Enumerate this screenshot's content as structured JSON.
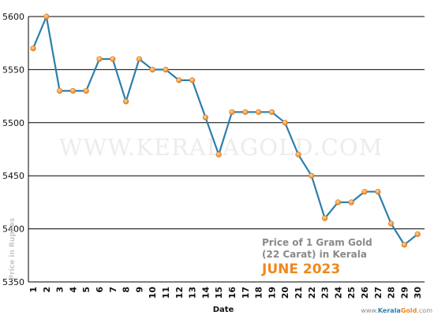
{
  "chart_data": {
    "type": "line",
    "x": [
      1,
      2,
      3,
      4,
      5,
      6,
      7,
      8,
      9,
      10,
      11,
      12,
      13,
      14,
      15,
      16,
      17,
      18,
      19,
      20,
      21,
      22,
      23,
      24,
      25,
      26,
      27,
      28,
      29,
      30
    ],
    "values": [
      5570,
      5600,
      5530,
      5530,
      5530,
      5560,
      5560,
      5520,
      5560,
      5550,
      5550,
      5540,
      5540,
      5505,
      5470,
      5510,
      5510,
      5510,
      5510,
      5500,
      5470,
      5450,
      5410,
      5425,
      5425,
      5435,
      5435,
      5405,
      5385,
      5395
    ],
    "xlabel": "Date",
    "ylabel": "Price in Rupees",
    "ylim": [
      5350,
      5600
    ],
    "yticks": [
      5350,
      5400,
      5450,
      5500,
      5550,
      5600
    ],
    "grid": true,
    "line_color": "#2b7fad",
    "marker_color": "#f39a2a"
  },
  "watermark": "WWW.KERALAGOLD.COM",
  "caption": {
    "line1": "Price of 1 Gram Gold",
    "line2": "(22 Carat) in Kerala",
    "month": "JUNE 2023",
    "month_color": "#f0881e"
  },
  "site": {
    "prefix": "www.",
    "kerala": "Kerala",
    "gold": "Gold",
    "suffix": ".com"
  }
}
